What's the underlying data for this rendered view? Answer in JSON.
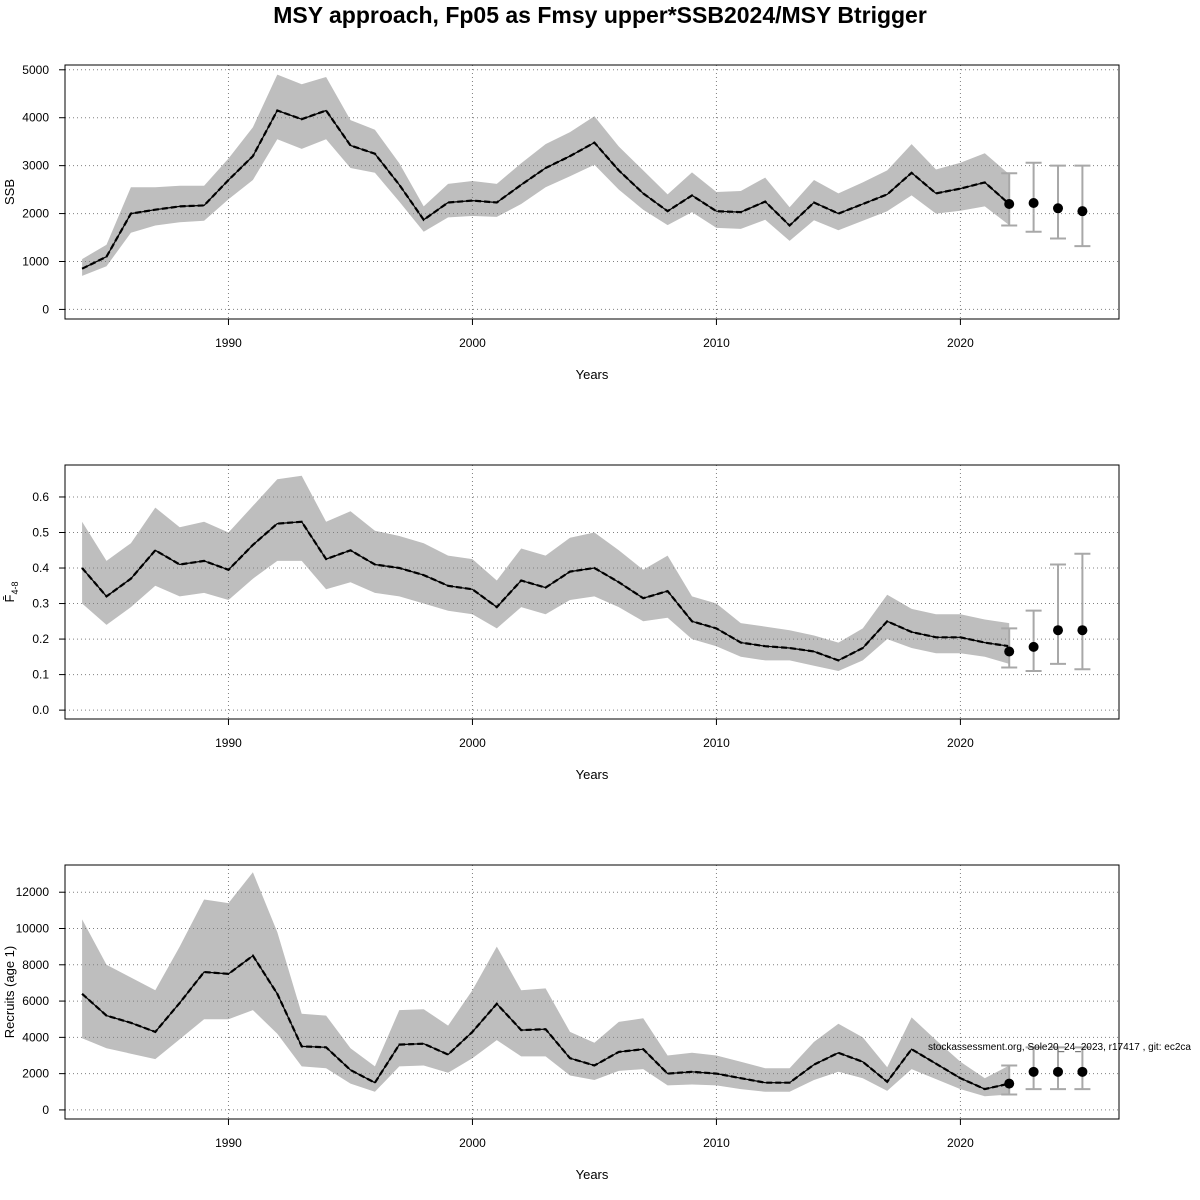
{
  "figure": {
    "title": "MSY approach, Fp05 as Fmsy upper*SSB2024/MSY Btrigger",
    "credit": "stockassessment.org, Sole20_24_2023, r17417 , git: ec2ca"
  },
  "colors": {
    "band": "#bebebe",
    "line": "#000000",
    "grid": "#808080",
    "errorbar": "#a8a8a8"
  },
  "chart_data": [
    {
      "type": "line",
      "name": "ssb",
      "title": "",
      "xlabel": "Years",
      "ylabel": "SSB",
      "xlim": [
        1983.3,
        2026.5
      ],
      "ylim": [
        -200,
        5100
      ],
      "xticks": [
        1990,
        2000,
        2010,
        2020
      ],
      "xtick_labels": [
        "1990",
        "2000",
        "2010",
        "2020"
      ],
      "yticks": [
        0,
        1000,
        2000,
        3000,
        4000,
        5000
      ],
      "ytick_labels": [
        "0",
        "1000",
        "2000",
        "3000",
        "4000",
        "5000"
      ],
      "grid": true,
      "x": [
        1984,
        1985,
        1986,
        1987,
        1988,
        1989,
        1990,
        1991,
        1992,
        1993,
        1994,
        1995,
        1996,
        1997,
        1998,
        1999,
        2000,
        2001,
        2002,
        2003,
        2004,
        2005,
        2006,
        2007,
        2008,
        2009,
        2010,
        2011,
        2012,
        2013,
        2014,
        2015,
        2016,
        2017,
        2018,
        2019,
        2020,
        2021,
        2022
      ],
      "estimate": [
        850,
        1100,
        2000,
        2080,
        2150,
        2170,
        2700,
        3200,
        4150,
        3970,
        4150,
        3420,
        3250,
        2600,
        1870,
        2230,
        2270,
        2230,
        2600,
        2950,
        3200,
        3480,
        2900,
        2420,
        2050,
        2380,
        2050,
        2030,
        2250,
        1750,
        2230,
        2000,
        2200,
        2400,
        2850,
        2420,
        2520,
        2650,
        2200
      ],
      "lower": [
        700,
        900,
        1600,
        1750,
        1820,
        1850,
        2300,
        2700,
        3550,
        3350,
        3550,
        2950,
        2850,
        2250,
        1620,
        1920,
        1950,
        1930,
        2200,
        2550,
        2780,
        3020,
        2500,
        2080,
        1760,
        2030,
        1700,
        1680,
        1870,
        1430,
        1860,
        1650,
        1850,
        2050,
        2380,
        2000,
        2060,
        2150,
        1760
      ],
      "upper": [
        1050,
        1350,
        2550,
        2550,
        2580,
        2580,
        3150,
        3800,
        4900,
        4700,
        4850,
        3950,
        3750,
        3050,
        2150,
        2620,
        2680,
        2620,
        3050,
        3450,
        3700,
        4030,
        3400,
        2900,
        2400,
        2860,
        2450,
        2470,
        2750,
        2130,
        2700,
        2420,
        2650,
        2900,
        3450,
        2920,
        3060,
        3260,
        2820
      ],
      "forecast": {
        "x": [
          2022,
          2023,
          2024,
          2025
        ],
        "values": [
          2200,
          2220,
          2110,
          2050
        ],
        "lower": [
          1750,
          1620,
          1480,
          1320
        ],
        "upper": [
          2840,
          3060,
          3000,
          3000
        ]
      }
    },
    {
      "type": "line",
      "name": "fbar",
      "title": "",
      "xlabel": "Years",
      "ylabel": "F̄",
      "ylabel_subscript": "4-8",
      "xlim": [
        1983.3,
        2026.5
      ],
      "ylim": [
        -0.025,
        0.69
      ],
      "xticks": [
        1990,
        2000,
        2010,
        2020
      ],
      "xtick_labels": [
        "1990",
        "2000",
        "2010",
        "2020"
      ],
      "yticks": [
        0,
        0.1,
        0.2,
        0.3,
        0.4,
        0.5,
        0.6
      ],
      "ytick_labels": [
        "0.0",
        "0.1",
        "0.2",
        "0.3",
        "0.4",
        "0.5",
        "0.6"
      ],
      "grid": true,
      "x": [
        1984,
        1985,
        1986,
        1987,
        1988,
        1989,
        1990,
        1991,
        1992,
        1993,
        1994,
        1995,
        1996,
        1997,
        1998,
        1999,
        2000,
        2001,
        2002,
        2003,
        2004,
        2005,
        2006,
        2007,
        2008,
        2009,
        2010,
        2011,
        2012,
        2013,
        2014,
        2015,
        2016,
        2017,
        2018,
        2019,
        2020,
        2021,
        2022
      ],
      "estimate": [
        0.4,
        0.32,
        0.37,
        0.45,
        0.41,
        0.42,
        0.395,
        0.465,
        0.525,
        0.53,
        0.425,
        0.45,
        0.41,
        0.4,
        0.38,
        0.35,
        0.34,
        0.29,
        0.365,
        0.345,
        0.39,
        0.4,
        0.36,
        0.315,
        0.335,
        0.25,
        0.23,
        0.19,
        0.18,
        0.175,
        0.165,
        0.14,
        0.175,
        0.25,
        0.22,
        0.205,
        0.205,
        0.19,
        0.18
      ],
      "lower": [
        0.3,
        0.24,
        0.29,
        0.35,
        0.32,
        0.33,
        0.31,
        0.37,
        0.42,
        0.42,
        0.34,
        0.36,
        0.33,
        0.32,
        0.3,
        0.28,
        0.27,
        0.23,
        0.29,
        0.27,
        0.31,
        0.32,
        0.29,
        0.25,
        0.26,
        0.2,
        0.18,
        0.15,
        0.14,
        0.14,
        0.125,
        0.11,
        0.14,
        0.2,
        0.175,
        0.16,
        0.16,
        0.15,
        0.13
      ],
      "upper": [
        0.53,
        0.42,
        0.47,
        0.57,
        0.515,
        0.53,
        0.5,
        0.575,
        0.65,
        0.66,
        0.53,
        0.56,
        0.505,
        0.49,
        0.47,
        0.435,
        0.425,
        0.365,
        0.455,
        0.435,
        0.485,
        0.5,
        0.45,
        0.395,
        0.435,
        0.32,
        0.3,
        0.245,
        0.235,
        0.225,
        0.21,
        0.19,
        0.23,
        0.325,
        0.285,
        0.27,
        0.27,
        0.255,
        0.245
      ],
      "forecast": {
        "x": [
          2022,
          2023,
          2024,
          2025
        ],
        "values": [
          0.165,
          0.178,
          0.225,
          0.225
        ],
        "lower": [
          0.12,
          0.11,
          0.13,
          0.115
        ],
        "upper": [
          0.23,
          0.28,
          0.41,
          0.44
        ]
      }
    },
    {
      "type": "line",
      "name": "recruits",
      "title": "",
      "xlabel": "Years",
      "ylabel": "Recruits (age 1)",
      "xlim": [
        1983.3,
        2026.5
      ],
      "ylim": [
        -500,
        13500
      ],
      "xticks": [
        1990,
        2000,
        2010,
        2020
      ],
      "xtick_labels": [
        "1990",
        "2000",
        "2010",
        "2020"
      ],
      "yticks": [
        0,
        2000,
        4000,
        6000,
        8000,
        10000,
        12000
      ],
      "ytick_labels": [
        "0",
        "2000",
        "4000",
        "6000",
        "8000",
        "10000",
        "12000"
      ],
      "grid": true,
      "x": [
        1984,
        1985,
        1986,
        1987,
        1988,
        1989,
        1990,
        1991,
        1992,
        1993,
        1994,
        1995,
        1996,
        1997,
        1998,
        1999,
        2000,
        2001,
        2002,
        2003,
        2004,
        2005,
        2006,
        2007,
        2008,
        2009,
        2010,
        2011,
        2012,
        2013,
        2014,
        2015,
        2016,
        2017,
        2018,
        2019,
        2020,
        2021,
        2022
      ],
      "estimate": [
        6400,
        5200,
        4800,
        4300,
        5900,
        7600,
        7500,
        8500,
        6400,
        3500,
        3450,
        2200,
        1500,
        3600,
        3650,
        3050,
        4300,
        5850,
        4400,
        4450,
        2850,
        2450,
        3200,
        3350,
        2000,
        2100,
        2000,
        1750,
        1500,
        1500,
        2500,
        3150,
        2650,
        1550,
        3350,
        2550,
        1750,
        1150,
        1450
      ],
      "lower": [
        3950,
        3400,
        3100,
        2800,
        3900,
        5000,
        5000,
        5500,
        4200,
        2400,
        2300,
        1450,
        1000,
        2400,
        2450,
        2050,
        2850,
        3850,
        2950,
        2950,
        1900,
        1650,
        2150,
        2250,
        1350,
        1400,
        1350,
        1150,
        1000,
        1000,
        1650,
        2100,
        1750,
        1050,
        2250,
        1700,
        1150,
        750,
        850
      ],
      "upper": [
        10500,
        8000,
        7300,
        6600,
        9000,
        11600,
        11400,
        13100,
        9800,
        5300,
        5200,
        3400,
        2400,
        5500,
        5550,
        4650,
        6600,
        9000,
        6600,
        6700,
        4300,
        3700,
        4850,
        5050,
        3000,
        3150,
        3000,
        2650,
        2300,
        2300,
        3750,
        4750,
        4000,
        2350,
        5100,
        3850,
        2650,
        1750,
        2450
      ],
      "forecast": {
        "x": [
          2022,
          2023,
          2024,
          2025
        ],
        "values": [
          1450,
          2100,
          2100,
          2100
        ],
        "lower": [
          850,
          1150,
          1150,
          1150
        ],
        "upper": [
          2450,
          3450,
          3450,
          3450
        ]
      }
    }
  ]
}
